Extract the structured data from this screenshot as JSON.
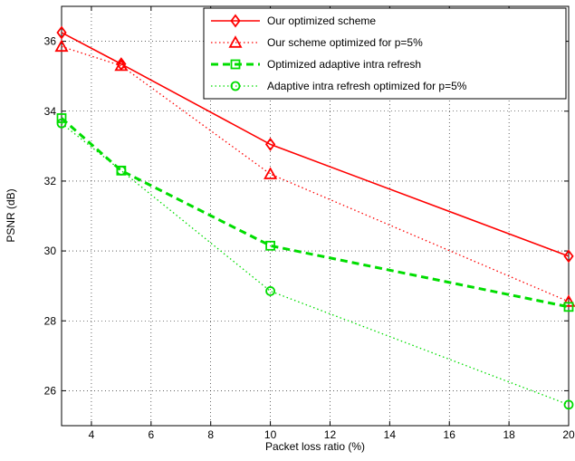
{
  "chart_data": {
    "type": "line",
    "xlabel": "Packet loss ratio (%)",
    "ylabel": "PSNR (dB)",
    "xlim": [
      3,
      20
    ],
    "ylim": [
      25,
      37
    ],
    "xticks": [
      4,
      6,
      8,
      10,
      12,
      14,
      16,
      18,
      20
    ],
    "yticks": [
      26,
      28,
      30,
      32,
      34,
      36
    ],
    "grid": true,
    "legend_position": "top-right",
    "x": [
      3,
      5,
      10,
      20
    ],
    "series": [
      {
        "name": "Our optimized scheme",
        "values": [
          36.25,
          35.35,
          33.05,
          29.85
        ],
        "color": "#ff0000",
        "line": "solid",
        "marker": "diamond"
      },
      {
        "name": "Our scheme optimized for p=5%",
        "values": [
          35.85,
          35.3,
          32.2,
          28.55
        ],
        "color": "#ff0000",
        "line": "dotted",
        "marker": "triangle"
      },
      {
        "name": "Optimized adaptive intra refresh",
        "values": [
          33.8,
          32.3,
          30.15,
          28.4
        ],
        "color": "#00dd00",
        "line": "dashed",
        "marker": "square"
      },
      {
        "name": "Adaptive intra refresh optimized for p=5%",
        "values": [
          33.65,
          32.3,
          28.85,
          25.6
        ],
        "color": "#00dd00",
        "line": "dotted",
        "marker": "circle"
      }
    ]
  }
}
